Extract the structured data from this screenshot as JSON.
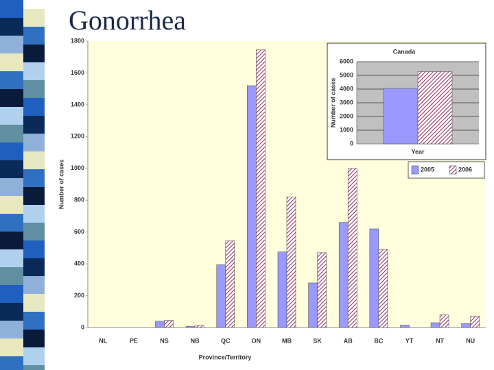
{
  "slide_title": "Gonorrhea",
  "chart_data": [
    {
      "type": "bar",
      "x_label": "Province/Territory",
      "y_label": "Number of cases",
      "categories": [
        "NL",
        "PE",
        "NS",
        "NB",
        "QC",
        "ON",
        "MB",
        "SK",
        "AB",
        "BC",
        "YT",
        "NT",
        "NU"
      ],
      "series": [
        {
          "name": "2005",
          "color": "#9999ff",
          "values": [
            0,
            0,
            40,
            8,
            395,
            1520,
            475,
            280,
            660,
            620,
            15,
            30,
            25
          ]
        },
        {
          "name": "2006",
          "color": "#993366",
          "values": [
            0,
            0,
            45,
            15,
            545,
            1745,
            820,
            470,
            1000,
            490,
            0,
            80,
            70
          ]
        }
      ],
      "ylim": [
        0,
        1800
      ],
      "yticks": [
        0,
        200,
        400,
        600,
        800,
        1000,
        1200,
        1400,
        1600,
        1800
      ],
      "grid": false,
      "legend": "upper right"
    },
    {
      "type": "bar",
      "title": "Canada",
      "x_label": "Year",
      "y_label": "Number of cases",
      "categories": [
        null
      ],
      "series": [
        {
          "name": "2005",
          "color": "#9999ff",
          "values": [
            4050
          ]
        },
        {
          "name": "2006",
          "color": "#993366",
          "values": [
            5280
          ]
        }
      ],
      "ylim": [
        0,
        6000
      ],
      "yticks": [
        0,
        1000,
        2000,
        3000,
        4000,
        5000,
        6000
      ],
      "grid": true
    }
  ]
}
